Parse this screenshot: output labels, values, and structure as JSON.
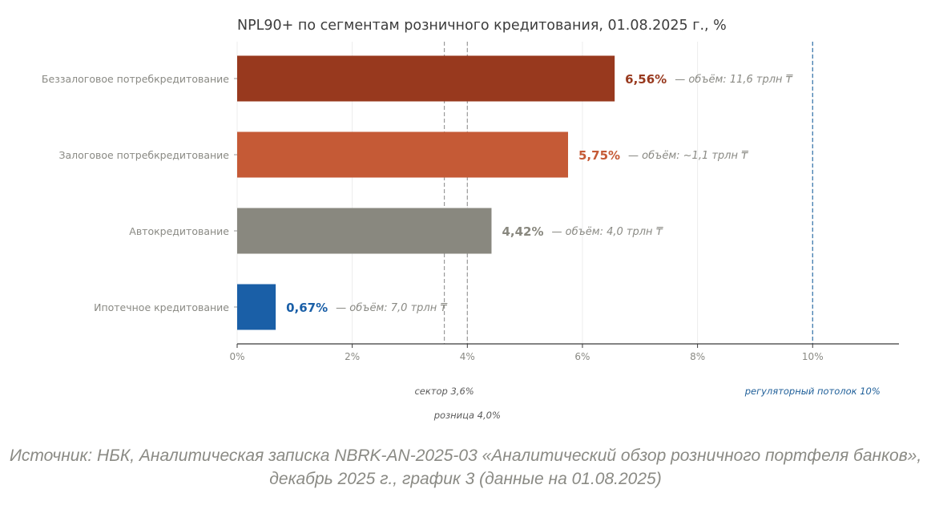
{
  "chart_data": {
    "type": "bar",
    "orientation": "horizontal",
    "title": "NPL90+ по сегментам розничного кредитования, 01.08.2025 г., %",
    "xlabel": "",
    "ylabel": "",
    "xlim": [
      0,
      11.5
    ],
    "x_ticks": [
      {
        "value": 0,
        "label": "0%"
      },
      {
        "value": 2,
        "label": "2%"
      },
      {
        "value": 4,
        "label": "4%"
      },
      {
        "value": 6,
        "label": "6%"
      },
      {
        "value": 8,
        "label": "8%"
      },
      {
        "value": 10,
        "label": "10%"
      }
    ],
    "grid": "vertical",
    "categories": [
      "Беззалоговое потребкредитование",
      "Залоговое потребкредитование",
      "Автокредитование",
      "Ипотечное кредитование"
    ],
    "values": [
      6.56,
      5.75,
      4.42,
      0.67
    ],
    "value_labels": [
      "6,56%",
      "5,75%",
      "4,42%",
      "0,67%"
    ],
    "volume_labels": [
      "— объём: 11,6 трлн ₸",
      "— объём: ~1,1 трлн ₸",
      "— объём: 4,0 трлн ₸",
      "— объём: 7,0 трлн ₸"
    ],
    "colors": [
      "#98391e",
      "#c55a36",
      "#89887f",
      "#1a5fa7"
    ],
    "reference_lines": [
      {
        "value": 3.6,
        "label": "сектор 3,6%",
        "color": "#9a9a9a"
      },
      {
        "value": 4.0,
        "label": "розница 4,0%",
        "color": "#9a9a9a"
      },
      {
        "value": 10,
        "label": "регуляторный потолок 10%",
        "color": "#2f6fa8"
      }
    ]
  },
  "source": "Источник: НБК, Аналитическая записка NBRK-AN-2025-03 «Аналитический обзор розничного портфеля банков», декабрь 2025 г., график 3 (данные на 01.08.2025)"
}
